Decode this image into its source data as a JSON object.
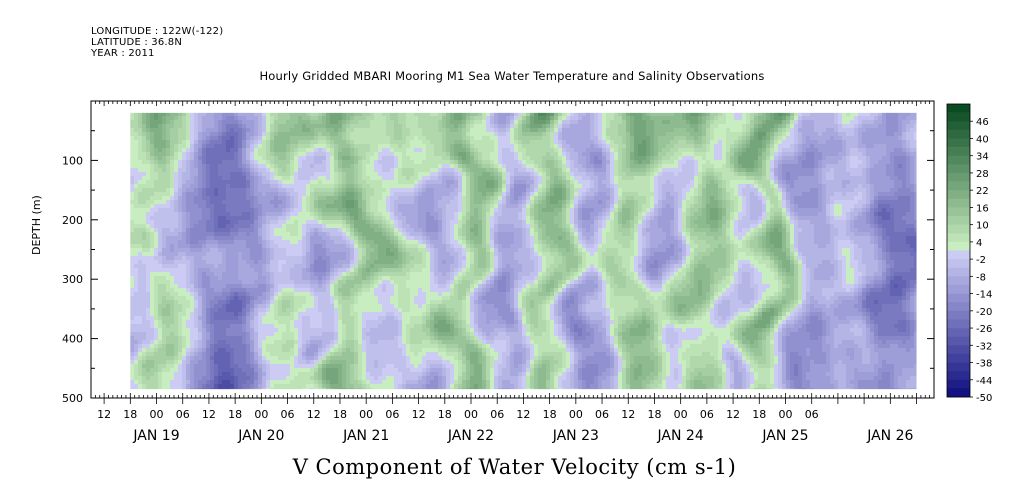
{
  "header": {
    "longitude": "LONGITUDE : 122W(-122)",
    "latitude": "LATITUDE : 36.8N",
    "year": "YEAR : 2011"
  },
  "chart_data": {
    "type": "heatmap",
    "title": "Hourly Gridded MBARI Mooring M1 Sea Water Temperature and Salinity Observations",
    "xlabel": "V Component of Water Velocity (cm s-1)",
    "ylabel": "DEPTH (m)",
    "y_axis": {
      "range": [
        0,
        500
      ],
      "inverted": true,
      "ticks": [
        100,
        200,
        300,
        400,
        500
      ],
      "units": "m"
    },
    "x_axis": {
      "hour_ticks": [
        "12",
        "18",
        "00",
        "06",
        "12",
        "18",
        "00",
        "06",
        "12",
        "18",
        "00",
        "06",
        "12",
        "18",
        "00",
        "06",
        "12",
        "18",
        "00",
        "06",
        "12",
        "18",
        "00",
        "06",
        "12",
        "18",
        "00",
        "06"
      ],
      "day_labels": [
        "JAN 19",
        "JAN 20",
        "JAN 21",
        "JAN 22",
        "JAN 23",
        "JAN 24",
        "JAN 25",
        "JAN 26"
      ],
      "start": "JAN 18 09:00",
      "end": "JAN 26 10:00"
    },
    "data_extent": {
      "time_start": "JAN 18 18:00",
      "time_end": "JAN 26 06:00",
      "depth_top": 20,
      "depth_bottom": 485
    },
    "colorbar": {
      "labels": [
        "46",
        "40",
        "34",
        "28",
        "22",
        "16",
        "10",
        "4",
        "-2",
        "-8",
        "-14",
        "-20",
        "-26",
        "-32",
        "-38",
        "-44",
        "-50"
      ],
      "levels_min": -50,
      "levels_max": 52,
      "step": 3
    },
    "field_description": "V component of water velocity, alternating positive (green) and negative (blue) bands with time and depth",
    "vertical_bands": [
      {
        "time": "JAN 18 21:00",
        "sign": "negative",
        "strength": 0.35
      },
      {
        "time": "JAN 19 00:00",
        "sign": "positive",
        "strength": 0.45
      },
      {
        "time": "JAN 19 12:00",
        "sign": "negative",
        "strength": 0.45
      },
      {
        "time": "JAN 19 21:00",
        "sign": "negative",
        "strength": 0.6
      },
      {
        "time": "JAN 20 06:00",
        "sign": "positive",
        "strength": 0.55
      },
      {
        "time": "JAN 20 12:00",
        "sign": "negative",
        "strength": 0.5
      },
      {
        "time": "JAN 20 21:00",
        "sign": "positive",
        "strength": 0.7
      },
      {
        "time": "JAN 21 03:00",
        "sign": "negative",
        "strength": 0.45
      },
      {
        "time": "JAN 21 09:00",
        "sign": "positive",
        "strength": 0.55
      },
      {
        "time": "JAN 21 18:00",
        "sign": "negative",
        "strength": 0.55
      },
      {
        "time": "JAN 22 00:00",
        "sign": "positive",
        "strength": 0.85
      },
      {
        "time": "JAN 22 09:00",
        "sign": "negative",
        "strength": 0.6
      },
      {
        "time": "JAN 22 18:00",
        "sign": "positive",
        "strength": 0.75
      },
      {
        "time": "JAN 23 03:00",
        "sign": "negative",
        "strength": 0.6
      },
      {
        "time": "JAN 23 12:00",
        "sign": "positive",
        "strength": 0.65
      },
      {
        "time": "JAN 23 21:00",
        "sign": "negative",
        "strength": 0.55
      },
      {
        "time": "JAN 24 06:00",
        "sign": "positive",
        "strength": 0.7
      },
      {
        "time": "JAN 24 12:00",
        "sign": "negative",
        "strength": 0.5
      },
      {
        "time": "JAN 24 21:00",
        "sign": "positive",
        "strength": 0.75
      },
      {
        "time": "JAN 25 06:00",
        "sign": "negative",
        "strength": 0.6
      },
      {
        "time": "JAN 25 15:00",
        "sign": "positive",
        "strength": 0.45
      },
      {
        "time": "JAN 26 00:00",
        "sign": "negative",
        "strength": 0.85
      }
    ],
    "surface_positive_layer": {
      "depth_top": 20,
      "depth_bottom": 130,
      "strength": 0.6
    }
  }
}
